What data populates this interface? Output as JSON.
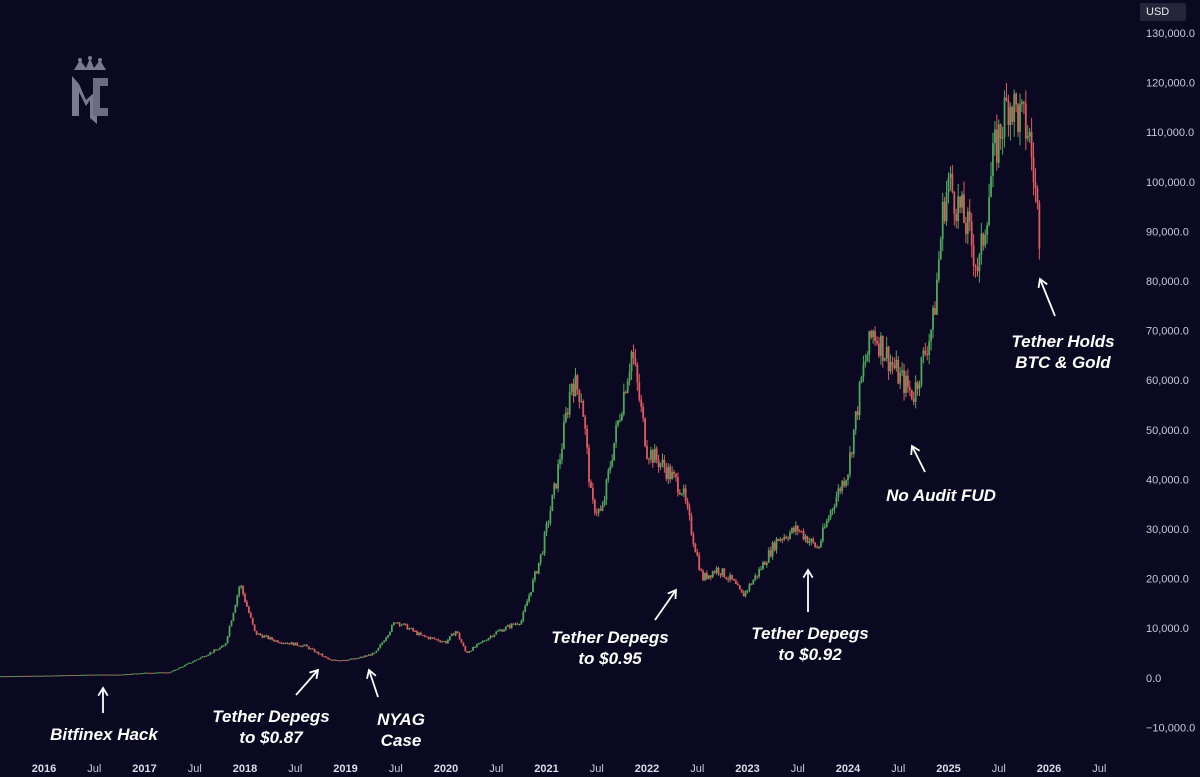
{
  "currency_label": "USD",
  "logo_icon": "mc-crown-logo",
  "colors": {
    "background": "#0b0822",
    "up": "#4ea85a",
    "down": "#e05a5e",
    "text": "#c9c9d6",
    "annotation": "#ffffff"
  },
  "chart_data": {
    "type": "candlestick",
    "title": "",
    "xlabel": "",
    "ylabel": "",
    "ylim": [
      -10000,
      130000
    ],
    "y_axis_position": "right",
    "y_ticks": [
      "130,000.0",
      "120,000.0",
      "110,000.0",
      "100,000.0",
      "90,000.0",
      "80,000.0",
      "70,000.0",
      "60,000.0",
      "50,000.0",
      "40,000.0",
      "30,000.0",
      "20,000.0",
      "10,000.0",
      "0.0",
      "−10,000.0"
    ],
    "y_tick_values": [
      130000,
      120000,
      110000,
      100000,
      90000,
      80000,
      70000,
      60000,
      50000,
      40000,
      30000,
      20000,
      10000,
      0,
      -10000
    ],
    "x_ticks": [
      {
        "label": "2016",
        "t": 2016.0,
        "bold": true
      },
      {
        "label": "Jul",
        "t": 2016.5,
        "bold": false
      },
      {
        "label": "2017",
        "t": 2017.0,
        "bold": true
      },
      {
        "label": "Jul",
        "t": 2017.5,
        "bold": false
      },
      {
        "label": "2018",
        "t": 2018.0,
        "bold": true
      },
      {
        "label": "Jul",
        "t": 2018.5,
        "bold": false
      },
      {
        "label": "2019",
        "t": 2019.0,
        "bold": true
      },
      {
        "label": "Jul",
        "t": 2019.5,
        "bold": false
      },
      {
        "label": "2020",
        "t": 2020.0,
        "bold": true
      },
      {
        "label": "Jul",
        "t": 2020.5,
        "bold": false
      },
      {
        "label": "2021",
        "t": 2021.0,
        "bold": true
      },
      {
        "label": "Jul",
        "t": 2021.5,
        "bold": false
      },
      {
        "label": "2022",
        "t": 2022.0,
        "bold": true
      },
      {
        "label": "Jul",
        "t": 2022.5,
        "bold": false
      },
      {
        "label": "2023",
        "t": 2023.0,
        "bold": true
      },
      {
        "label": "Jul",
        "t": 2023.5,
        "bold": false
      },
      {
        "label": "2024",
        "t": 2024.0,
        "bold": true
      },
      {
        "label": "Jul",
        "t": 2024.5,
        "bold": false
      },
      {
        "label": "2025",
        "t": 2025.0,
        "bold": true
      },
      {
        "label": "Jul",
        "t": 2025.5,
        "bold": false
      },
      {
        "label": "2026",
        "t": 2026.0,
        "bold": true
      },
      {
        "label": "Jul",
        "t": 2026.5,
        "bold": false
      }
    ],
    "price_path": [
      [
        2015.5,
        300
      ],
      [
        2016.0,
        430
      ],
      [
        2016.5,
        650
      ],
      [
        2016.75,
        620
      ],
      [
        2017.0,
        1000
      ],
      [
        2017.25,
        1100
      ],
      [
        2017.4,
        2500
      ],
      [
        2017.6,
        4500
      ],
      [
        2017.8,
        6500
      ],
      [
        2017.95,
        19000
      ],
      [
        2018.1,
        9000
      ],
      [
        2018.3,
        7500
      ],
      [
        2018.6,
        6400
      ],
      [
        2018.85,
        3500
      ],
      [
        2019.1,
        3800
      ],
      [
        2019.3,
        5000
      ],
      [
        2019.5,
        11500
      ],
      [
        2019.75,
        8500
      ],
      [
        2020.0,
        7200
      ],
      [
        2020.1,
        9500
      ],
      [
        2020.2,
        5000
      ],
      [
        2020.5,
        9200
      ],
      [
        2020.75,
        11500
      ],
      [
        2020.95,
        25000
      ],
      [
        2021.1,
        40000
      ],
      [
        2021.25,
        60000
      ],
      [
        2021.35,
        57000
      ],
      [
        2021.45,
        35000
      ],
      [
        2021.55,
        33000
      ],
      [
        2021.65,
        45000
      ],
      [
        2021.85,
        66000
      ],
      [
        2022.0,
        46000
      ],
      [
        2022.15,
        43000
      ],
      [
        2022.35,
        38000
      ],
      [
        2022.45,
        29000
      ],
      [
        2022.55,
        20000
      ],
      [
        2022.7,
        22000
      ],
      [
        2022.85,
        19500
      ],
      [
        2022.95,
        16500
      ],
      [
        2023.1,
        21000
      ],
      [
        2023.3,
        28000
      ],
      [
        2023.5,
        30000
      ],
      [
        2023.7,
        26000
      ],
      [
        2023.85,
        35000
      ],
      [
        2024.0,
        42000
      ],
      [
        2024.15,
        62000
      ],
      [
        2024.25,
        70000
      ],
      [
        2024.5,
        61000
      ],
      [
        2024.65,
        57000
      ],
      [
        2024.85,
        72000
      ],
      [
        2024.95,
        95000
      ],
      [
        2025.0,
        100000
      ],
      [
        2025.2,
        90000
      ],
      [
        2025.3,
        82000
      ],
      [
        2025.45,
        105000
      ],
      [
        2025.6,
        117000
      ],
      [
        2025.7,
        113000
      ],
      [
        2025.8,
        110000
      ],
      [
        2025.88,
        95000
      ],
      [
        2025.92,
        87000
      ]
    ],
    "annotations": [
      {
        "lines": [
          "Bitfinex Hack"
        ],
        "t": 2016.6,
        "price": 700
      },
      {
        "lines": [
          "Tether Depegs",
          "to $0.87"
        ],
        "t": 2018.7,
        "price": 6000
      },
      {
        "lines": [
          "NYAG",
          "Case"
        ],
        "t": 2019.3,
        "price": 4000
      },
      {
        "lines": [
          "Tether Depegs",
          "to $0.95"
        ],
        "t": 2022.3,
        "price": 19000
      },
      {
        "lines": [
          "Tether Depegs",
          "to $0.92"
        ],
        "t": 2023.65,
        "price": 26000
      },
      {
        "lines": [
          "No Audit FUD"
        ],
        "t": 2024.7,
        "price": 53000
      },
      {
        "lines": [
          "Tether Holds",
          "BTC & Gold"
        ],
        "t": 2025.95,
        "price": 86000
      }
    ]
  }
}
